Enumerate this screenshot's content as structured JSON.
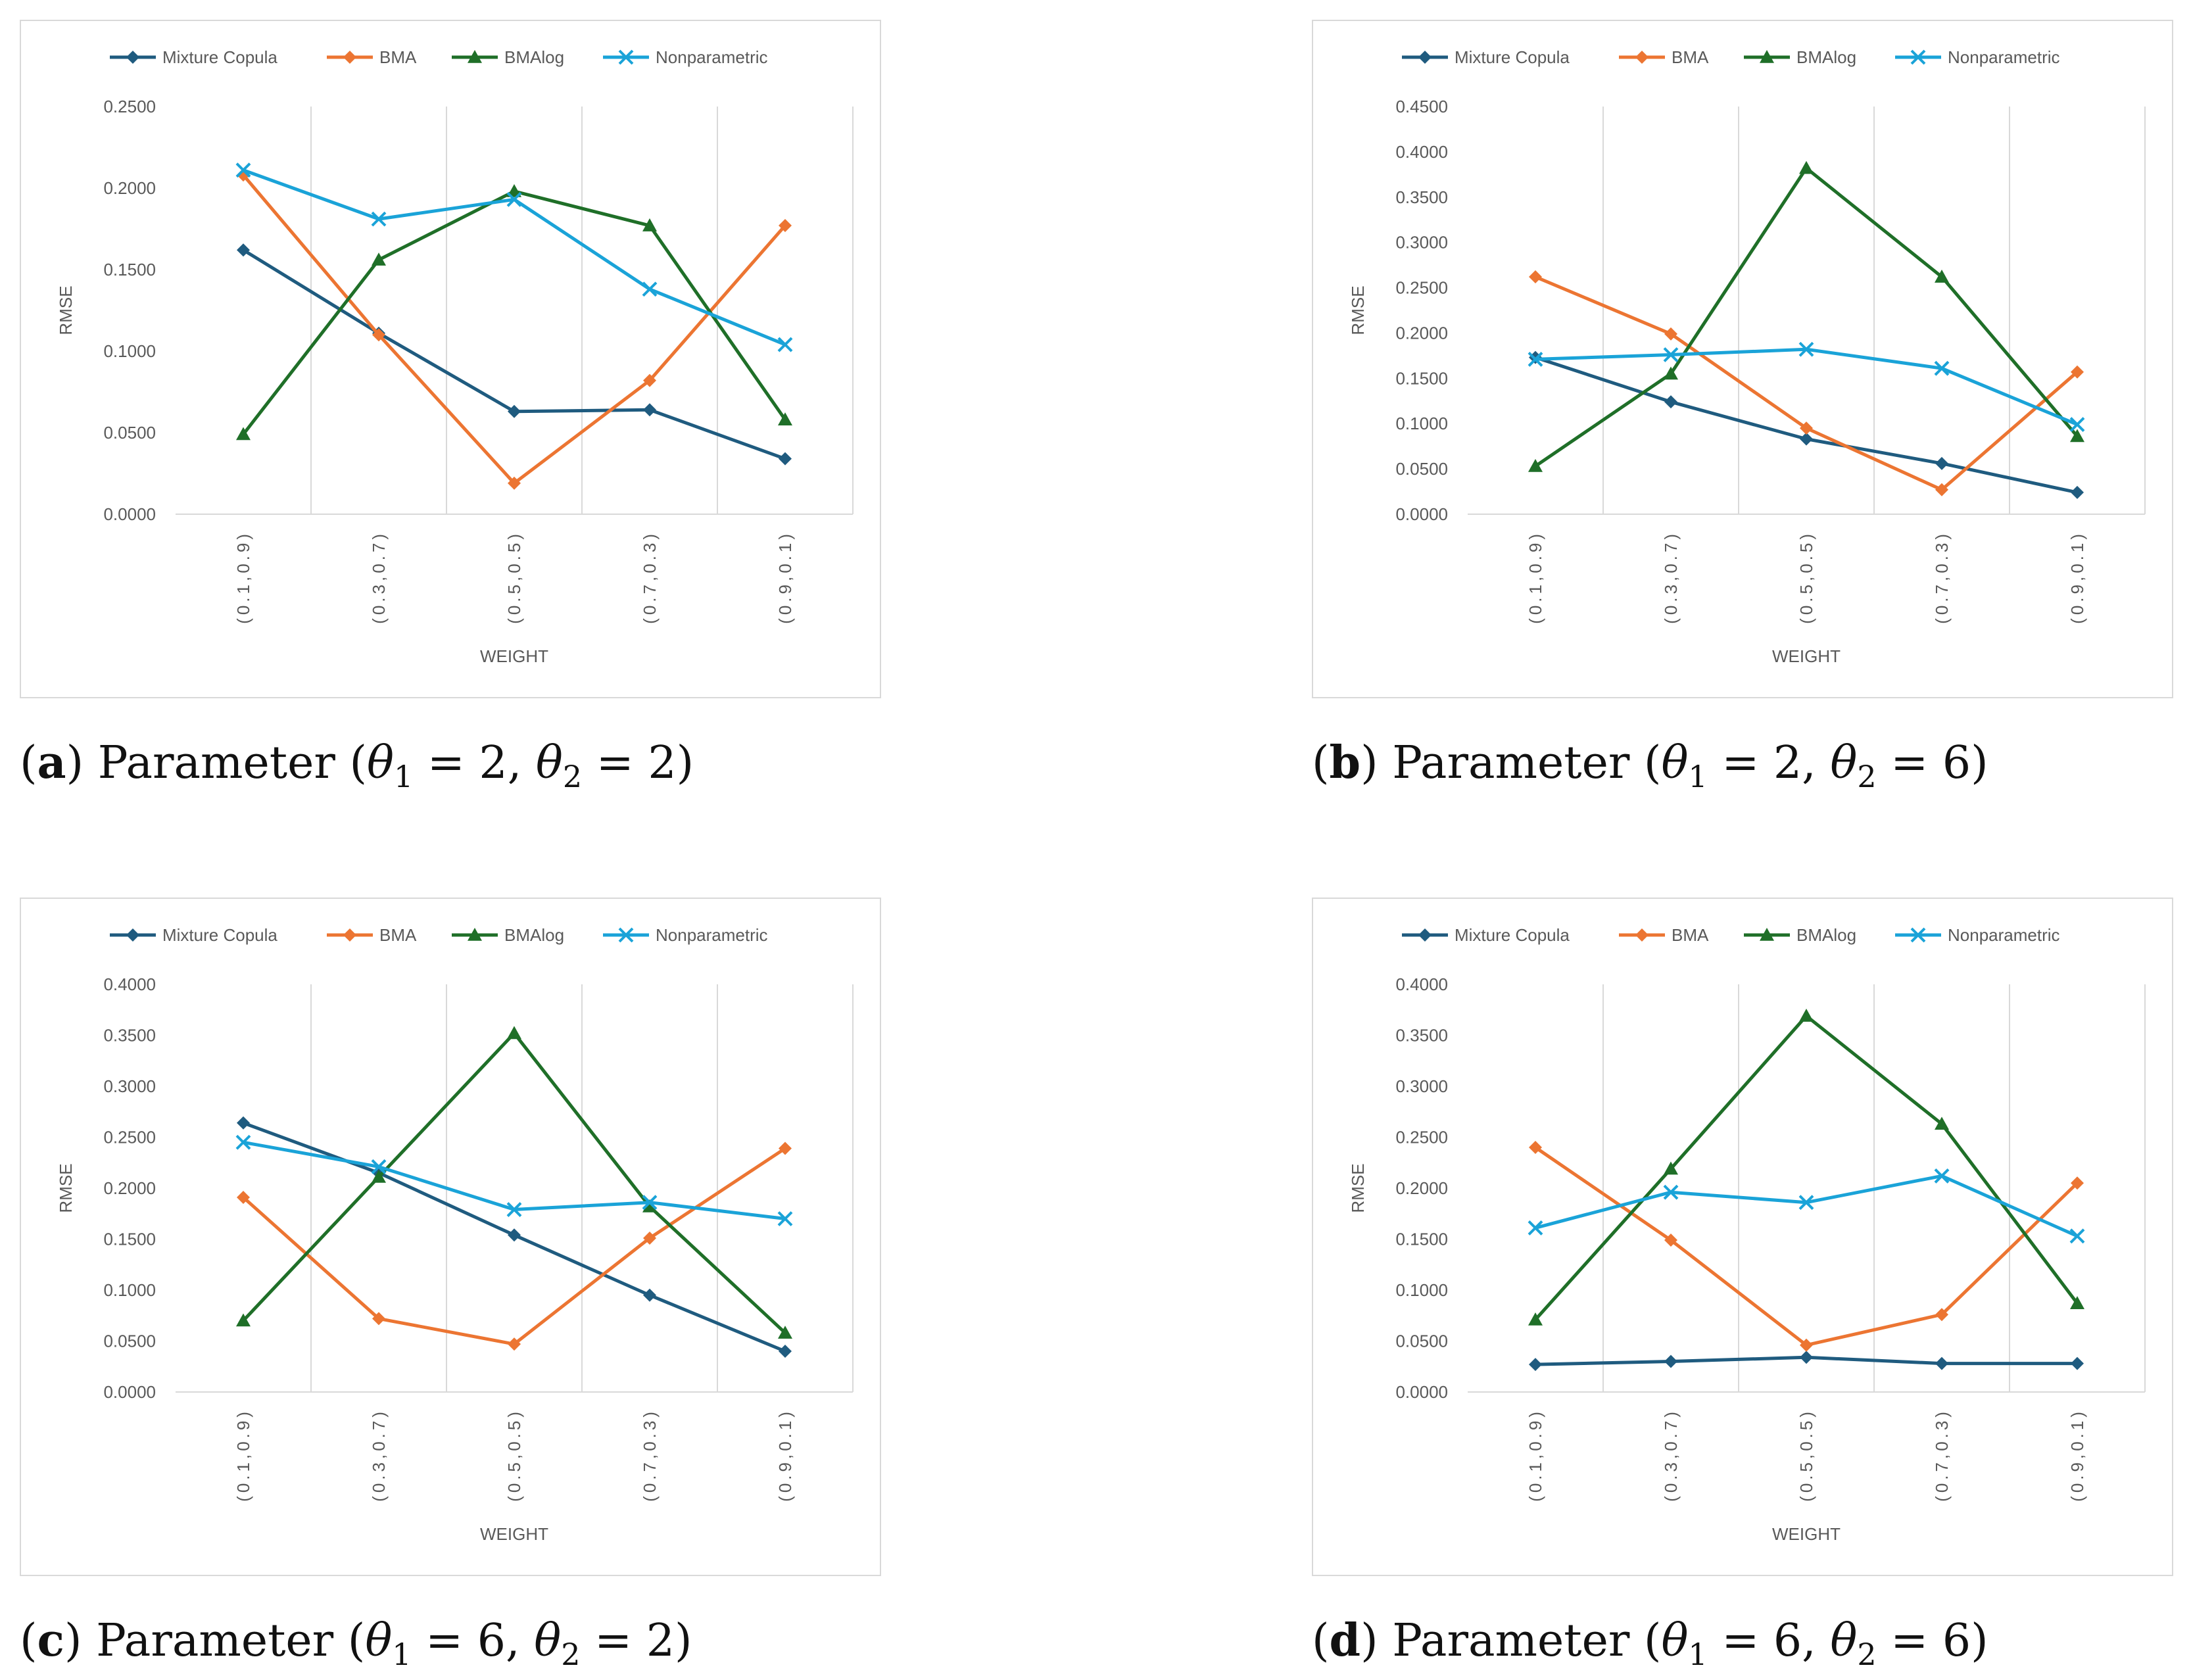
{
  "colors": {
    "Mixture Copula": "#1f5b7f",
    "BMA": "#ec7532",
    "BMAlog": "#1f6f28",
    "Nonparametric": "#1aa3d8",
    "grid": "#d9d9d9",
    "text": "#595959"
  },
  "markers": {
    "Mixture Copula": "diamond",
    "BMA": "diamond",
    "BMAlog": "triangle",
    "Nonparametric": "cross"
  },
  "chart_data": [
    {
      "id": "a",
      "type": "line",
      "xlabel": "WEIGHT",
      "ylabel": "RMSE",
      "categories": [
        "(0.1,0.9)",
        "(0.3,0.7)",
        "(0.5,0.5)",
        "(0.7,0.3)",
        "(0.9,0.1)"
      ],
      "ylim": [
        0,
        0.25
      ],
      "yticks": [
        "0.0000",
        "0.0500",
        "0.1000",
        "0.1500",
        "0.2000",
        "0.2500"
      ],
      "legend_position": "top",
      "grid": "vertical",
      "series": [
        {
          "name": "Mixture Copula",
          "values": [
            0.162,
            0.111,
            0.063,
            0.064,
            0.034
          ]
        },
        {
          "name": "BMA",
          "values": [
            0.208,
            0.11,
            0.019,
            0.082,
            0.177
          ]
        },
        {
          "name": "BMAlog",
          "values": [
            0.049,
            0.156,
            0.198,
            0.177,
            0.058
          ]
        },
        {
          "name": "Nonparametric",
          "values": [
            0.211,
            0.181,
            0.193,
            0.138,
            0.104
          ]
        }
      ]
    },
    {
      "id": "b",
      "type": "line",
      "xlabel": "WEIGHT",
      "ylabel": "RMSE",
      "categories": [
        "(0.1,0.9)",
        "(0.3,0.7)",
        "(0.5,0.5)",
        "(0.7,0.3)",
        "(0.9,0.1)"
      ],
      "ylim": [
        0,
        0.45
      ],
      "yticks": [
        "0.0000",
        "0.0500",
        "0.1000",
        "0.1500",
        "0.2000",
        "0.2500",
        "0.3000",
        "0.3500",
        "0.4000",
        "0.4500"
      ],
      "legend_position": "top",
      "grid": "vertical",
      "series": [
        {
          "name": "Mixture Copula",
          "values": [
            0.173,
            0.124,
            0.083,
            0.056,
            0.024
          ]
        },
        {
          "name": "BMA",
          "values": [
            0.262,
            0.199,
            0.095,
            0.027,
            0.157
          ]
        },
        {
          "name": "BMAlog",
          "values": [
            0.053,
            0.155,
            0.382,
            0.262,
            0.086
          ]
        },
        {
          "name": "Nonparametric",
          "values": [
            0.171,
            0.176,
            0.182,
            0.161,
            0.099
          ]
        }
      ]
    },
    {
      "id": "c",
      "type": "line",
      "xlabel": "WEIGHT",
      "ylabel": "RMSE",
      "categories": [
        "(0.1,0.9)",
        "(0.3,0.7)",
        "(0.5,0.5)",
        "(0.7,0.3)",
        "(0.9,0.1)"
      ],
      "ylim": [
        0,
        0.4
      ],
      "yticks": [
        "0.0000",
        "0.0500",
        "0.1000",
        "0.1500",
        "0.2000",
        "0.2500",
        "0.3000",
        "0.3500",
        "0.4000"
      ],
      "legend_position": "top",
      "grid": "vertical",
      "series": [
        {
          "name": "Mixture Copula",
          "values": [
            0.264,
            0.215,
            0.154,
            0.095,
            0.04
          ]
        },
        {
          "name": "BMA",
          "values": [
            0.191,
            0.072,
            0.047,
            0.151,
            0.239
          ]
        },
        {
          "name": "BMAlog",
          "values": [
            0.07,
            0.211,
            0.352,
            0.182,
            0.058
          ]
        },
        {
          "name": "Nonparametric",
          "values": [
            0.245,
            0.221,
            0.179,
            0.186,
            0.17
          ]
        }
      ]
    },
    {
      "id": "d",
      "type": "line",
      "xlabel": "WEIGHT",
      "ylabel": "RMSE",
      "categories": [
        "(0.1,0.9)",
        "(0.3,0.7)",
        "(0.5,0.5)",
        "(0.7,0.3)",
        "(0.9,0.1)"
      ],
      "ylim": [
        0,
        0.4
      ],
      "yticks": [
        "0.0000",
        "0.0500",
        "0.1000",
        "0.1500",
        "0.2000",
        "0.2500",
        "0.3000",
        "0.3500",
        "0.4000"
      ],
      "legend_position": "top",
      "grid": "vertical",
      "series": [
        {
          "name": "Mixture Copula",
          "values": [
            0.027,
            0.03,
            0.034,
            0.028,
            0.028
          ]
        },
        {
          "name": "BMA",
          "values": [
            0.24,
            0.149,
            0.046,
            0.076,
            0.205
          ]
        },
        {
          "name": "BMAlog",
          "values": [
            0.071,
            0.219,
            0.369,
            0.263,
            0.087
          ]
        },
        {
          "name": "Nonparametric",
          "values": [
            0.161,
            0.196,
            0.186,
            0.212,
            0.153
          ]
        }
      ]
    }
  ],
  "captions": [
    {
      "letter": "a",
      "prefix": "Parameter (",
      "theta": "θ",
      "eq1": " = 2, ",
      "eq2": " = 2)"
    },
    {
      "letter": "b",
      "prefix": "Parameter (",
      "theta": "θ",
      "eq1": " = 2, ",
      "eq2": " = 6)"
    },
    {
      "letter": "c",
      "prefix": "Parameter (",
      "theta": "θ",
      "eq1": " = 6, ",
      "eq2": " = 2)"
    },
    {
      "letter": "d",
      "prefix": "Parameter (",
      "theta": "θ",
      "eq1": " = 6, ",
      "eq2": " = 6)"
    }
  ]
}
